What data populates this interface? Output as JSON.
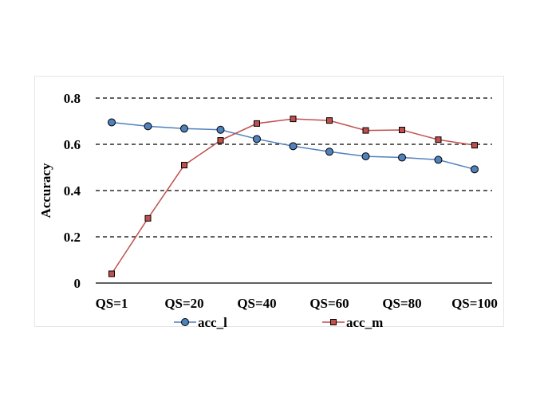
{
  "chart_data": {
    "type": "line",
    "ylabel": "Accuracy",
    "xlabel": "",
    "title": "",
    "ylim": [
      0,
      0.8
    ],
    "yticks": [
      "0",
      "0.2",
      "0.4",
      "0.6",
      "0.8"
    ],
    "ytick_values": [
      0,
      0.2,
      0.4,
      0.6,
      0.8
    ],
    "x_count": 11,
    "xtick_labels": [
      "QS=1",
      "QS=20",
      "QS=40",
      "QS=60",
      "QS=80",
      "QS=100"
    ],
    "xtick_positions": [
      0,
      2,
      4,
      6,
      8,
      10
    ],
    "grid": "horizontal dashed",
    "legend_position": "bottom",
    "series": [
      {
        "name": "acc_l",
        "marker": "circle",
        "color": "#4f81bd",
        "line_color": "#4f81bd",
        "values": [
          0.695,
          0.678,
          0.668,
          0.663,
          0.623,
          0.592,
          0.568,
          0.548,
          0.543,
          0.533,
          0.492
        ]
      },
      {
        "name": "acc_m",
        "marker": "square",
        "color": "#c0504d",
        "line_color": "#c0504d",
        "values": [
          0.04,
          0.28,
          0.51,
          0.617,
          0.69,
          0.71,
          0.703,
          0.66,
          0.662,
          0.62,
          0.596
        ]
      }
    ]
  }
}
